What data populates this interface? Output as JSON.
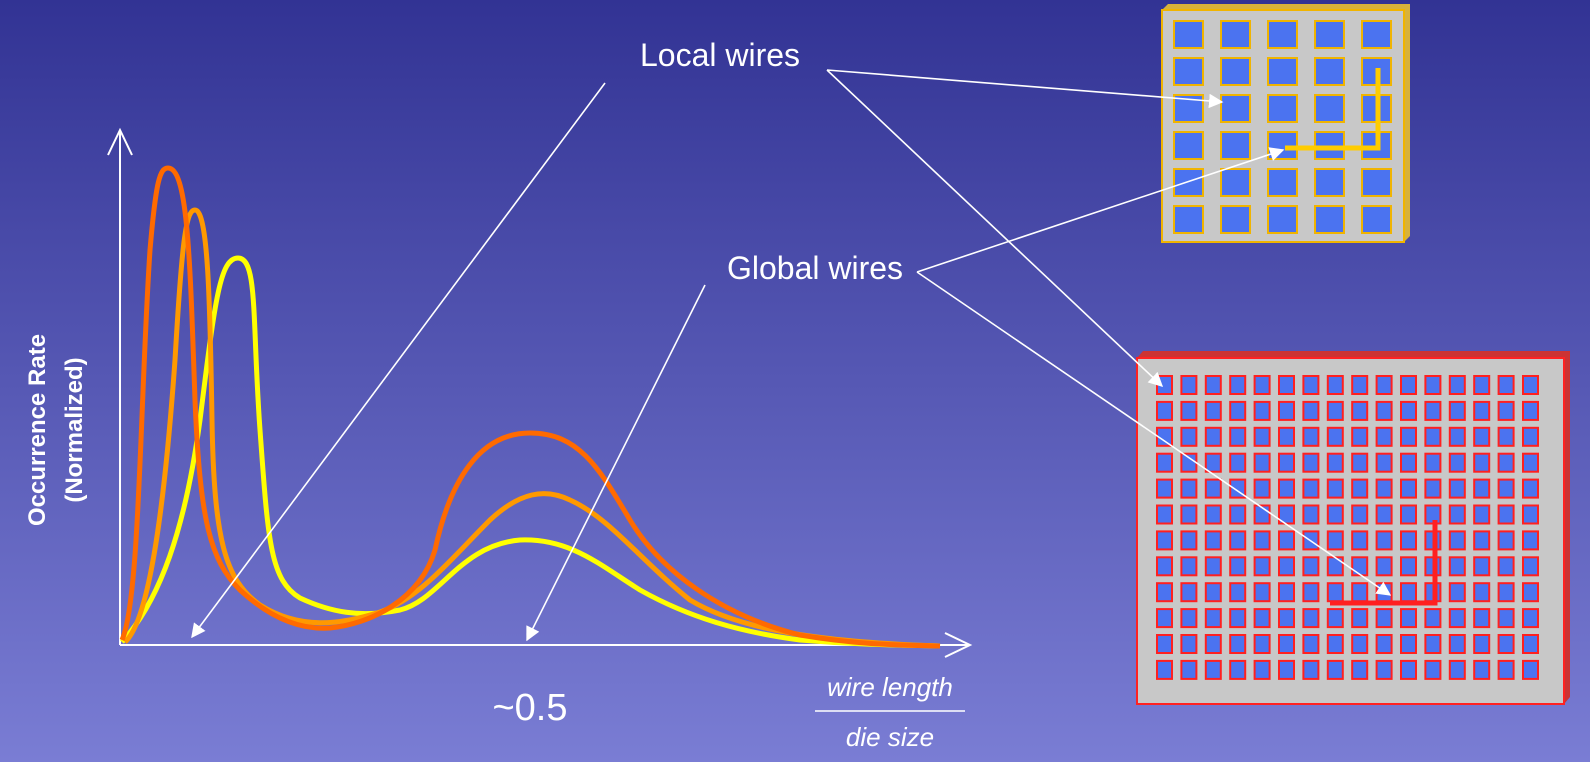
{
  "labels": {
    "local_wires": "Local wires",
    "global_wires": "Global wires",
    "x_marker": "~0.5",
    "x_label_numerator": "wire length",
    "x_label_denominator": "die size",
    "y_label_line1": "Occurrence Rate",
    "y_label_line2": "(Normalized)"
  }
}
